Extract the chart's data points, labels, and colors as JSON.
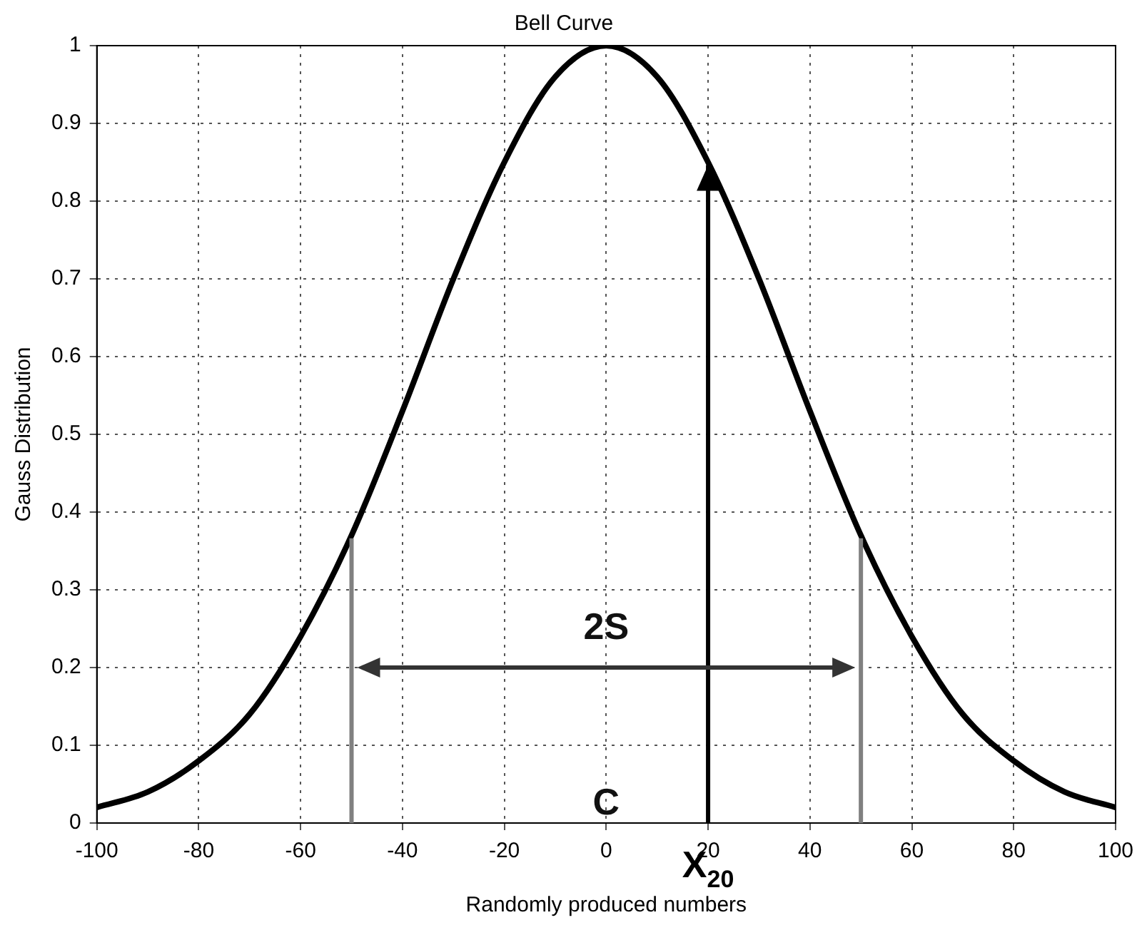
{
  "chart_data": {
    "type": "line",
    "title": "Bell Curve",
    "xlabel": "Randomly produced numbers",
    "ylabel": "Gauss Distribution",
    "x": [
      -100,
      -90,
      -80,
      -70,
      -60,
      -50,
      -40,
      -30,
      -20,
      -10,
      0,
      10,
      20,
      30,
      40,
      50,
      60,
      70,
      80,
      90,
      100
    ],
    "series": [
      {
        "color": "#000000",
        "values": [
          0.02,
          0.04,
          0.08,
          0.14,
          0.24,
          0.37,
          0.53,
          0.7,
          0.85,
          0.96,
          1,
          0.96,
          0.85,
          0.7,
          0.53,
          0.37,
          0.24,
          0.14,
          0.08,
          0.04,
          0.02
        ]
      }
    ],
    "xlim": [
      -100,
      100
    ],
    "xticks": [
      -100,
      -80,
      -60,
      -40,
      -20,
      0,
      20,
      40,
      60,
      80,
      100
    ],
    "ylim": [
      0,
      1
    ],
    "yticks": [
      0,
      0.1,
      0.2,
      0.3,
      0.4,
      0.5,
      0.6,
      0.7,
      0.8,
      0.9,
      1
    ],
    "grid": true,
    "legend": false,
    "marker": "none",
    "line_style": "solid",
    "ref_lines": [
      {
        "axis": "x",
        "value": -50,
        "color": "#808080"
      },
      {
        "axis": "x",
        "value": 50,
        "color": "#808080"
      },
      {
        "axis": "x",
        "value": 20,
        "color": "#000000",
        "label": "X$_{20}$"
      }
    ],
    "annotations": [
      "2S",
      "C"
    ]
  }
}
